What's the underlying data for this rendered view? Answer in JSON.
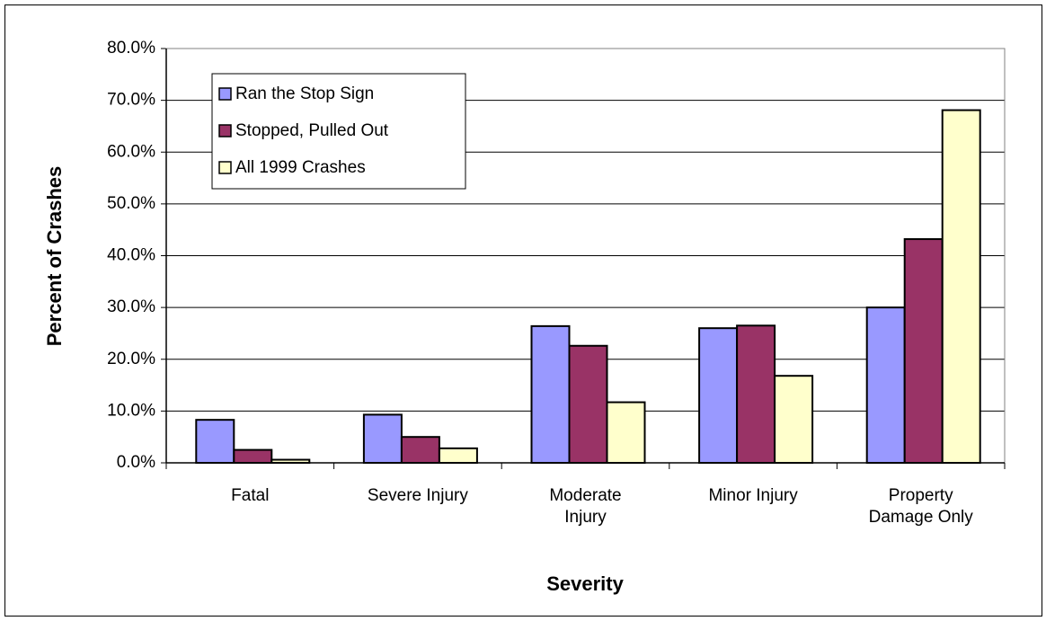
{
  "chart_data": {
    "type": "bar",
    "x_label": "Severity",
    "y_label": "Percent of Crashes",
    "categories": [
      "Fatal",
      "Severe Injury",
      "Moderate Injury",
      "Minor Injury",
      "Property Damage Only"
    ],
    "series": [
      {
        "name": "Ran the Stop Sign",
        "color": "#9999ff",
        "values": [
          8.3,
          9.3,
          26.4,
          26.0,
          30.0
        ]
      },
      {
        "name": "Stopped, Pulled Out",
        "color": "#993366",
        "values": [
          2.5,
          5.0,
          22.6,
          26.5,
          43.2
        ]
      },
      {
        "name": "All 1999 Crashes",
        "color": "#ffffcc",
        "values": [
          0.6,
          2.8,
          11.7,
          16.8,
          68.1
        ]
      }
    ],
    "ylim": [
      0,
      80
    ],
    "yticks": [
      {
        "value": 0,
        "label": "0.0%"
      },
      {
        "value": 10,
        "label": "10.0%"
      },
      {
        "value": 20,
        "label": "20.0%"
      },
      {
        "value": 30,
        "label": "30.0%"
      },
      {
        "value": 40,
        "label": "40.0%"
      },
      {
        "value": 50,
        "label": "50.0%"
      },
      {
        "value": 60,
        "label": "60.0%"
      },
      {
        "value": 70,
        "label": "70.0%"
      },
      {
        "value": 80,
        "label": "80.0%"
      }
    ],
    "grid": true,
    "legend": "upper left"
  }
}
